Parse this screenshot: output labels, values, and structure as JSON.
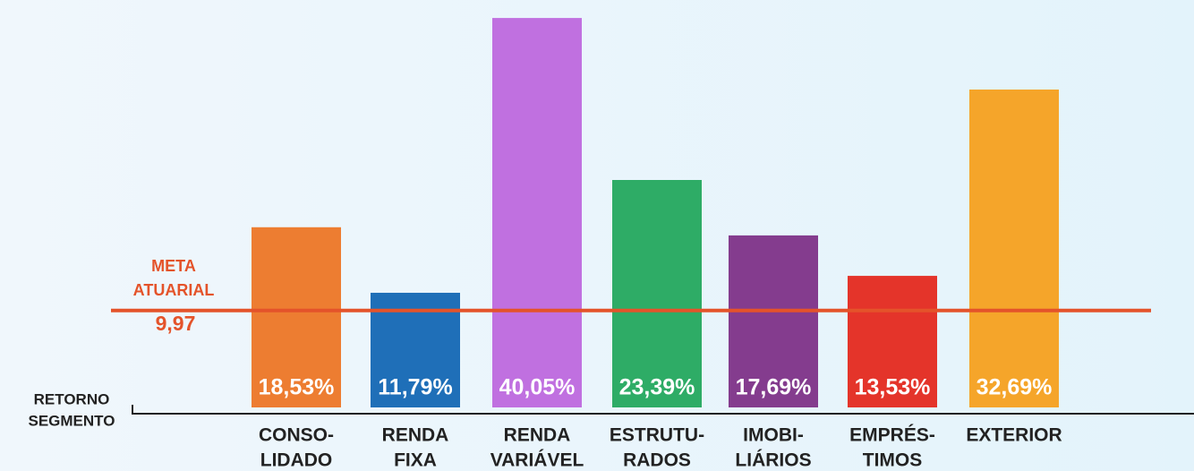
{
  "chart_data": {
    "type": "bar",
    "categories": [
      [
        "CONSO-",
        "LIDADO"
      ],
      [
        "RENDA",
        "FIXA"
      ],
      [
        "RENDA",
        "VARIÁVEL"
      ],
      [
        "ESTRUTU-",
        "RADOS"
      ],
      [
        "IMOBI-",
        "LIÁRIOS"
      ],
      [
        "EMPRÉS-",
        "TIMOS"
      ],
      [
        "EXTERIOR"
      ]
    ],
    "values": [
      18.53,
      11.79,
      40.05,
      23.39,
      17.69,
      13.53,
      32.69
    ],
    "value_labels": [
      "18,53%",
      "11,79%",
      "40,05%",
      "23,39%",
      "17,69%",
      "13,53%",
      "32,69%"
    ],
    "colors": [
      "#ed7d31",
      "#1f6fb8",
      "#c070e0",
      "#2eac66",
      "#843c8e",
      "#e4342a",
      "#f5a52a"
    ],
    "ylim": [
      0,
      41.9
    ],
    "x_axis_label": [
      "RETORNO",
      "SEGMENTO"
    ],
    "reference": {
      "label": [
        "META",
        "ATUARIAL"
      ],
      "value": 9.97,
      "value_label": "9,97",
      "color": "#e4532a"
    }
  }
}
